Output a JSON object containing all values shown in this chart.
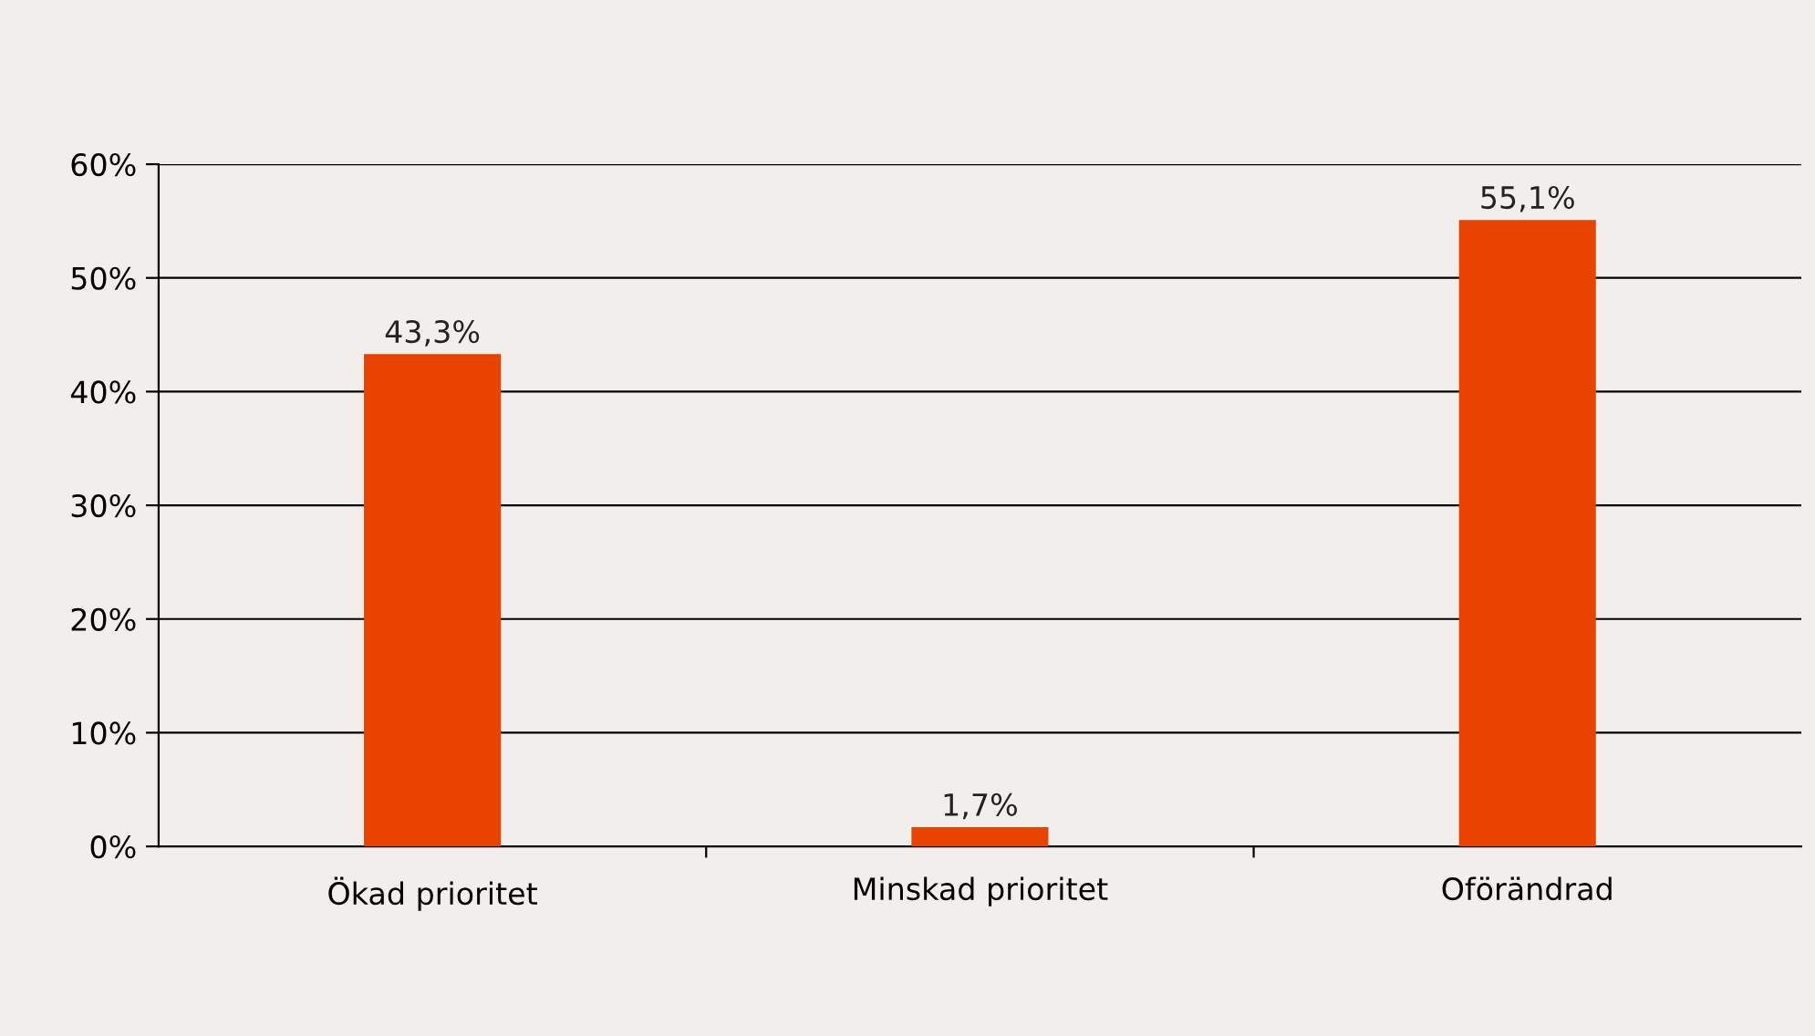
{
  "chart_data": {
    "type": "bar",
    "categories": [
      "Ökad prioritet",
      "Minskad prioritet",
      "Oförändrad"
    ],
    "values": [
      43.3,
      1.7,
      55.1
    ],
    "color": "#e84300",
    "value_labels": [
      "43,3%",
      "1,7%",
      "55,1%"
    ],
    "ylim": [
      0,
      60
    ],
    "yticks": [
      {
        "value": 0,
        "label": "0%"
      },
      {
        "value": 10,
        "label": "10%"
      },
      {
        "value": 20,
        "label": "20%"
      },
      {
        "value": 30,
        "label": "30%"
      },
      {
        "value": 40,
        "label": "40%"
      },
      {
        "value": 50,
        "label": "50%"
      },
      {
        "value": 60,
        "label": "60%"
      }
    ],
    "grid": "y"
  }
}
